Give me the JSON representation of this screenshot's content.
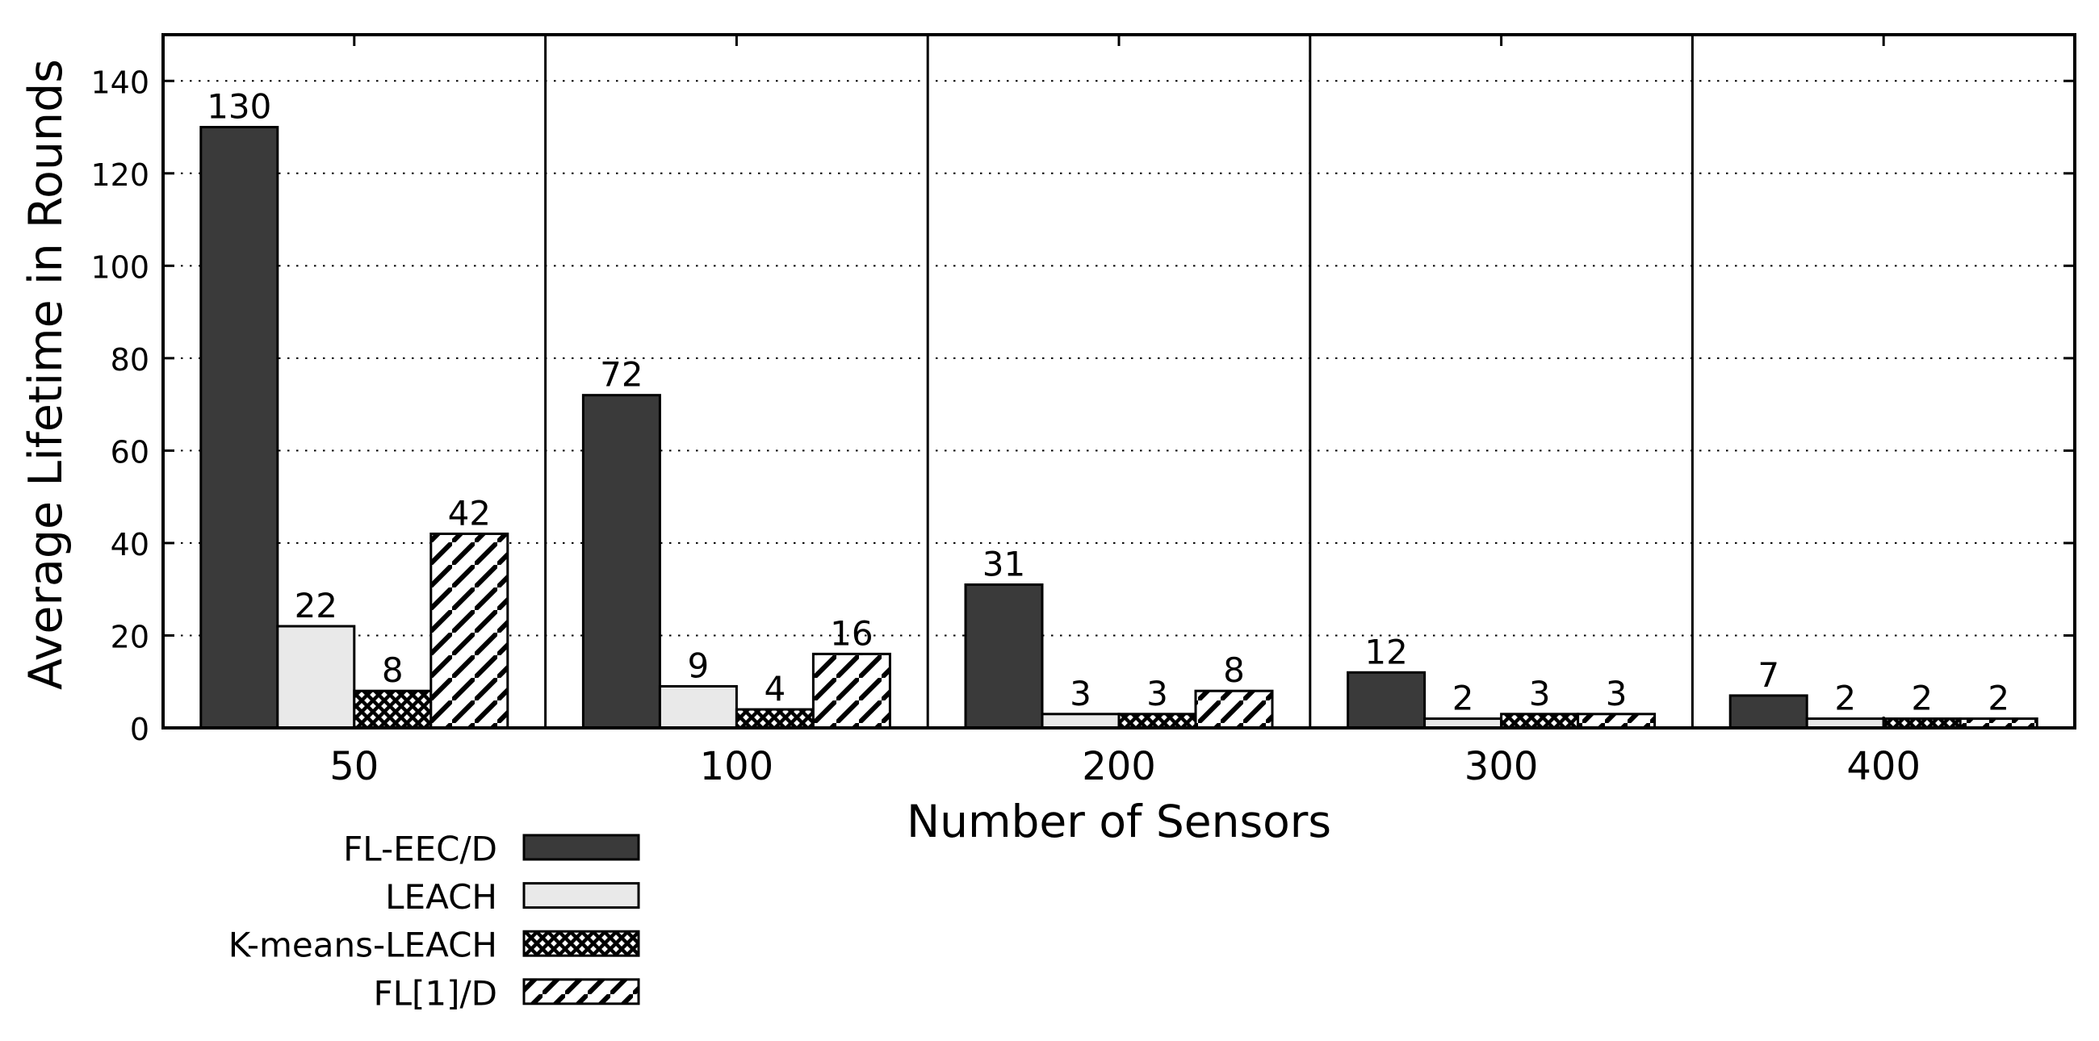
{
  "chart_data": {
    "type": "bar",
    "title": "",
    "xlabel": "Number of Sensors",
    "ylabel": "Average Lifetime in Rounds",
    "categories": [
      "50",
      "100",
      "200",
      "300",
      "400"
    ],
    "series": [
      {
        "name": "FL-EEC/D",
        "values": [
          130,
          72,
          31,
          12,
          7
        ],
        "fill": "#3a3a3a",
        "pattern": "solid"
      },
      {
        "name": "LEACH",
        "values": [
          22,
          9,
          3,
          2,
          2
        ],
        "fill": "#e9e9e9",
        "pattern": "solid"
      },
      {
        "name": "K-means-LEACH",
        "values": [
          8,
          4,
          3,
          3,
          2
        ],
        "fill": "#ffffff",
        "pattern": "crosshatch"
      },
      {
        "name": "FL[1]/D",
        "values": [
          42,
          16,
          8,
          3,
          2
        ],
        "fill": "#ffffff",
        "pattern": "diagonal"
      }
    ],
    "bar_value_labels": true,
    "ylim": [
      0,
      150
    ],
    "yticks": [
      0,
      20,
      40,
      60,
      80,
      100,
      120,
      140
    ],
    "grid": "horizontal-dotted",
    "panel_separators": true,
    "legend_position": "bottom-left",
    "colors": {
      "bar_edge": "#000000",
      "axis": "#000000",
      "text": "#000000",
      "grid": "#000000",
      "background": "#ffffff"
    }
  }
}
